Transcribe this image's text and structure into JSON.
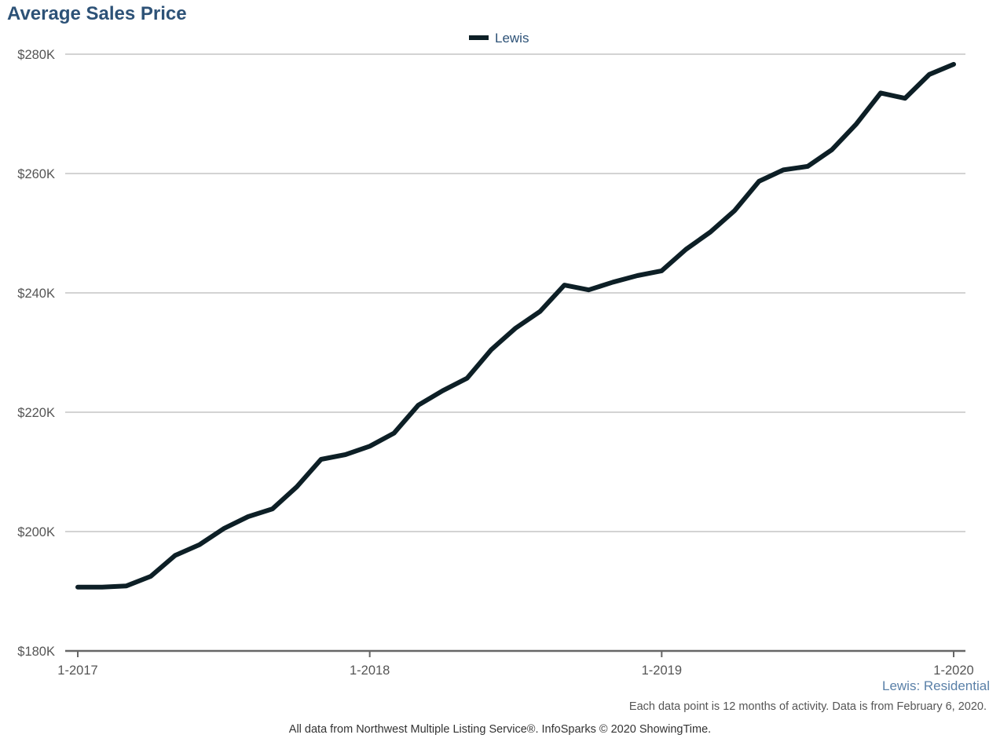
{
  "header": {
    "title": "Average Sales Price"
  },
  "legend": {
    "label": "Lewis"
  },
  "footer": {
    "region_label": "Lewis: Residential",
    "note": "Each data point is 12 months of activity. Data is from February 6, 2020.",
    "credit": "All data from Northwest Multiple Listing Service®. InfoSparks © 2020 ShowingTime."
  },
  "colors": {
    "line": "#0d1f26",
    "title": "#2d5277",
    "grid": "#b9b9b9",
    "axis": "#666666",
    "region": "#5a80a8"
  },
  "chart_data": {
    "type": "line",
    "title": "Average Sales Price",
    "xlabel": "",
    "ylabel": "",
    "ylim": [
      180000,
      280000
    ],
    "y_ticks": [
      180000,
      200000,
      220000,
      240000,
      260000,
      280000
    ],
    "y_tick_labels": [
      "$180K",
      "$200K",
      "$220K",
      "$240K",
      "$260K",
      "$280K"
    ],
    "x_ticks": [
      "1-2017",
      "1-2018",
      "1-2019",
      "1-2020"
    ],
    "grid": true,
    "legend_position": "top-center",
    "x": [
      "1-2017",
      "2-2017",
      "3-2017",
      "4-2017",
      "5-2017",
      "6-2017",
      "7-2017",
      "8-2017",
      "9-2017",
      "10-2017",
      "11-2017",
      "12-2017",
      "1-2018",
      "2-2018",
      "3-2018",
      "4-2018",
      "5-2018",
      "6-2018",
      "7-2018",
      "8-2018",
      "9-2018",
      "10-2018",
      "11-2018",
      "12-2018",
      "1-2019",
      "2-2019",
      "3-2019",
      "4-2019",
      "5-2019",
      "6-2019",
      "7-2019",
      "8-2019",
      "9-2019",
      "10-2019",
      "11-2019",
      "12-2019",
      "1-2020"
    ],
    "series": [
      {
        "name": "Lewis",
        "values": [
          190700,
          190700,
          190900,
          192500,
          196000,
          197800,
          200500,
          202500,
          203800,
          207500,
          212100,
          212900,
          214300,
          216500,
          221200,
          223600,
          225700,
          230500,
          234100,
          236900,
          241300,
          240500,
          241800,
          242900,
          243700,
          247300,
          250200,
          253800,
          258700,
          260600,
          261200,
          264000,
          268300,
          273500,
          272600,
          276600,
          278300
        ]
      }
    ]
  }
}
